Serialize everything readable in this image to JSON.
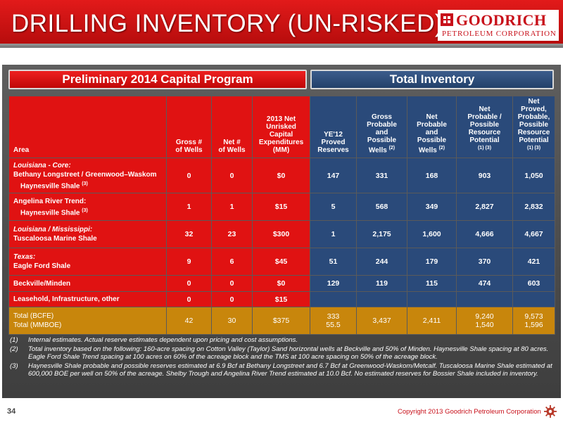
{
  "slide": {
    "title": "DRILLING INVENTORY (UN-RISKED)",
    "logo_name": "GOODRICH",
    "logo_sub": "PETROLEUM CORPORATION",
    "section_left": "Preliminary 2014 Capital Program",
    "section_right": "Total Inventory",
    "page_number": "34",
    "copyright": "Copyright 2013 Goodrich Petroleum Corporation"
  },
  "table": {
    "headers": {
      "area": "Area",
      "gross_wells": [
        "Gross #",
        "of Wells"
      ],
      "net_wells": [
        "Net #",
        "of Wells"
      ],
      "capex": [
        "2013 Net",
        "Unrisked",
        "Capital",
        "Expenditures",
        "(MM)"
      ],
      "proved": [
        "YE'12",
        "Proved",
        "Reserves"
      ],
      "gross_prob": [
        "Gross",
        "Probable",
        "and",
        "Possible",
        "Wells"
      ],
      "gross_prob_sup": "(2)",
      "net_prob": [
        "Net",
        "Probable",
        "and",
        "Possible",
        "Wells"
      ],
      "net_prob_sup": "(2)",
      "net_potential": [
        "Net",
        "Probable /",
        "Possible",
        "Resource",
        "Potential"
      ],
      "net_potential_sup": "(1) (3)",
      "net_proved_potential": [
        "Net Proved,",
        "Probable,",
        "Possible",
        "Resource",
        "Potential"
      ],
      "net_proved_potential_sup": "(1) (3)"
    },
    "rows": [
      {
        "area_line1": "Louisiana - Core:",
        "area_line2": "Bethany Longstreet  / Greenwood–Waskom",
        "area_line3": "Haynesville  Shale",
        "area_sup": "(3)",
        "gross": "0",
        "net": "0",
        "capex": "$0",
        "proved": "147",
        "gross_prob": "331",
        "net_prob": "168",
        "potential": "903",
        "proved_potential": "1,050"
      },
      {
        "area_line1": "Angelina River Trend:",
        "area_line2": "Haynesville  Shale",
        "area_sup": "(3)",
        "gross": "1",
        "net": "1",
        "capex": "$15",
        "proved": "5",
        "gross_prob": "568",
        "net_prob": "349",
        "potential": "2,827",
        "proved_potential": "2,832"
      },
      {
        "area_line1": "Louisiana / Mississippi:",
        "area_line2": "Tuscaloosa Marine Shale",
        "gross": "32",
        "net": "23",
        "capex": "$300",
        "proved": "1",
        "gross_prob": "2,175",
        "net_prob": "1,600",
        "potential": "4,666",
        "proved_potential": "4,667"
      },
      {
        "area_line1": "Texas:",
        "area_line2": "Eagle Ford Shale",
        "gross": "9",
        "net": "6",
        "capex": "$45",
        "proved": "51",
        "gross_prob": "244",
        "net_prob": "179",
        "potential": "370",
        "proved_potential": "421"
      },
      {
        "area_line1": "Beckville/Minden",
        "gross": "0",
        "net": "0",
        "capex": "$0",
        "proved": "129",
        "gross_prob": "119",
        "net_prob": "115",
        "potential": "474",
        "proved_potential": "603"
      },
      {
        "area_line1": "Leasehold,  Infrastructure,  other",
        "gross": "0",
        "net": "0",
        "capex": "$15",
        "proved": "",
        "gross_prob": "",
        "net_prob": "",
        "potential": "",
        "proved_potential": ""
      }
    ],
    "total": {
      "label1": "Total (BCFE)",
      "label2": "Total (MMBOE)",
      "gross": "42",
      "net": "30",
      "capex": "$375",
      "proved1": "333",
      "proved2": "55.5",
      "gross_prob": "3,437",
      "net_prob": "2,411",
      "potential1": "9,240",
      "potential2": "1,540",
      "proved_potential1": "9,573",
      "proved_potential2": "1,596"
    }
  },
  "notes": [
    {
      "num": "(1)",
      "text": "Internal estimates.  Actual reserve estimates dependent upon pricing and cost assumptions."
    },
    {
      "num": "(2)",
      "text": "Total inventory based on the following: 160-acre spacing on Cotton Valley (Taylor) Sand horizontal wells at Beckville and 50% of Minden.  Haynesville Shale spacing at 80 acres.  Eagle Ford Shale Trend spacing at 100 acres on 60% of the acreage block and the TMS at 100 acre spacing on 50% of the acreage block."
    },
    {
      "num": "(3)",
      "text": "Haynesville Shale probable and possible reserves estimated at 6.9 Bcf at Bethany Longstreet and 6.7 Bcf at Greenwood-Waskom/Metcalf.  Tuscaloosa Marine Shale estimated at 600,000 BOE per well on 50% of the acreage. Shelby Trough and Angelina River Trend estimated at 10.0 Bcf. No estimated reserves for Bossier Shale included in inventory."
    }
  ],
  "colors": {
    "header_red": "#d41414",
    "capital_red": "#e01212",
    "inventory_blue": "#2a4a7a",
    "total_gold": "#c8860c",
    "brand_red": "#c8101a"
  },
  "icons": {
    "logo": "goodrich-logo-icon",
    "footer": "gear-icon"
  }
}
